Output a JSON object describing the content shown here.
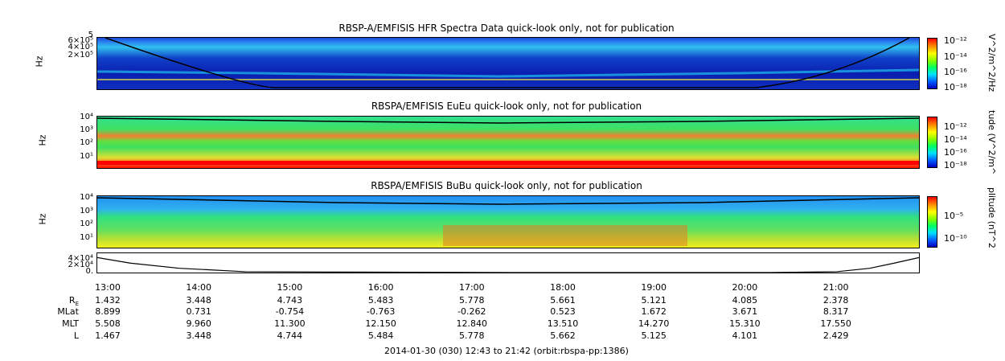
{
  "chart_data": [
    {
      "type": "heatmap",
      "title": "RBSP-A/EMFISIS  HFR Spectra Data quick-look only, not for publication",
      "ylabel": "Hz",
      "yticks": [
        "6×10⁵",
        "4×10⁵",
        "2×10⁵"
      ],
      "ytick_top": "5",
      "colorbar": {
        "label": "V^2/m^2/Hz",
        "ticks": [
          "10⁻¹²",
          "10⁻¹⁴",
          "10⁻¹⁶",
          "10⁻¹⁸"
        ]
      },
      "colors": {
        "background": "#1030c8",
        "band": "#30b0ff",
        "hot": "#f0f030"
      }
    },
    {
      "type": "heatmap",
      "title": "RBSPA/EMFISIS  EuEu quick-look only, not for publication",
      "ylabel": "Hz",
      "yticks": [
        "10⁴",
        "10³",
        "10²",
        "10¹"
      ],
      "colorbar": {
        "label": "tude (V^2/m^",
        "ticks": [
          "10⁻¹²",
          "10⁻¹⁴",
          "10⁻¹⁶",
          "10⁻¹⁸"
        ]
      },
      "colors": {
        "background": "#30e070",
        "band": "#f06020",
        "low": "#ff2000"
      }
    },
    {
      "type": "heatmap",
      "title": "RBSPA/EMFISIS  BuBu quick-look only, not for publication",
      "ylabel": "Hz",
      "yticks": [
        "10⁴",
        "10³",
        "10²",
        "10¹"
      ],
      "colorbar": {
        "label": "plitude (nT^2",
        "ticks": [
          "10⁻⁵",
          "10⁻¹⁰"
        ]
      },
      "colors": {
        "background": "#3090f0",
        "mid": "#30e080",
        "low": "#c0e020"
      }
    },
    {
      "type": "line",
      "title": "",
      "yticks": [
        "4×10⁴",
        "2×10⁴",
        "0."
      ],
      "ylim": [
        0,
        45000
      ],
      "x": [
        0,
        0.04,
        0.1,
        0.18,
        0.5,
        0.82,
        0.9,
        0.94,
        0.97,
        1.0
      ],
      "y": [
        35000,
        22000,
        10000,
        2000,
        0,
        0,
        2000,
        10000,
        22000,
        35000
      ]
    }
  ],
  "time_axis": {
    "ticks": [
      "13:00",
      "14:00",
      "15:00",
      "16:00",
      "17:00",
      "18:00",
      "19:00",
      "20:00",
      "21:00"
    ],
    "rows": [
      {
        "label": "R",
        "label_sub": "E",
        "values": [
          "1.432",
          "3.448",
          "4.743",
          "5.483",
          "5.778",
          "5.661",
          "5.121",
          "4.085",
          "2.378"
        ]
      },
      {
        "label": "MLat",
        "values": [
          "8.899",
          "0.731",
          "-0.754",
          "-0.763",
          "-0.262",
          "0.523",
          "1.672",
          "3.671",
          "8.317"
        ]
      },
      {
        "label": "MLT",
        "values": [
          "5.508",
          "9.960",
          "11.300",
          "12.150",
          "12.840",
          "13.510",
          "14.270",
          "15.310",
          "17.550"
        ]
      },
      {
        "label": "L",
        "values": [
          "1.467",
          "3.448",
          "4.744",
          "5.484",
          "5.778",
          "5.662",
          "5.125",
          "4.101",
          "2.429"
        ]
      }
    ]
  },
  "footer": "2014-01-30 (030) 12:43 to 21:42 (orbit:rbspa-pp:1386)"
}
